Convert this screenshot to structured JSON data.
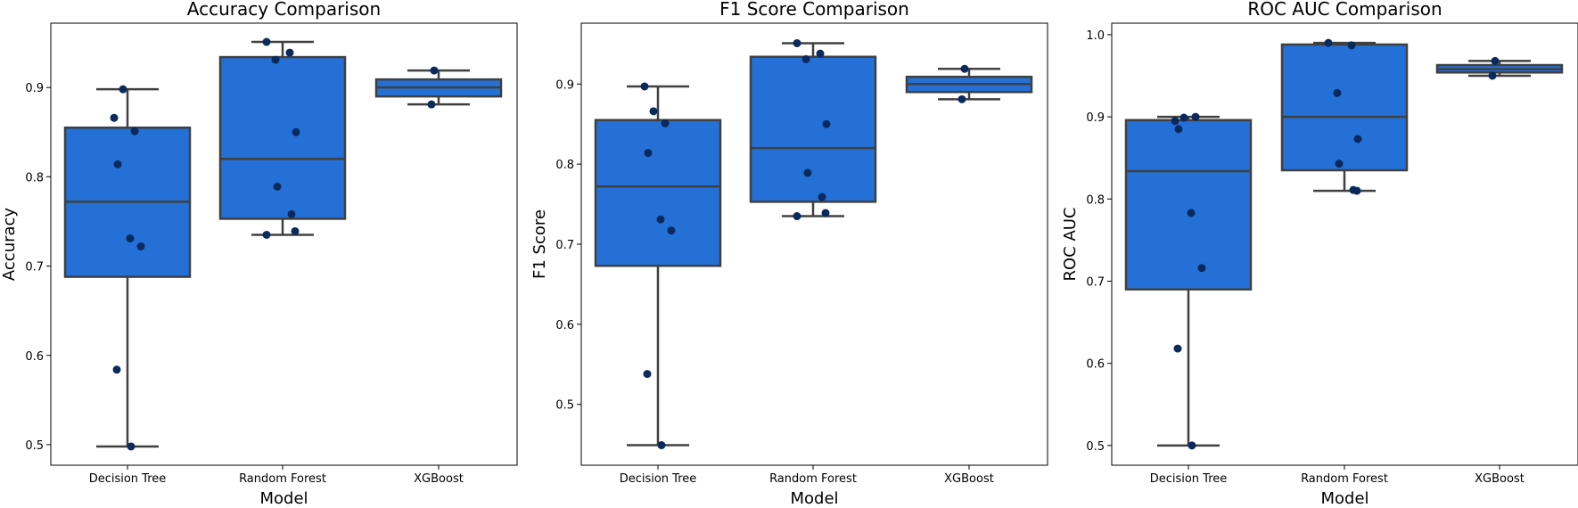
{
  "colors": {
    "box": "#2470d6",
    "line": "#404040",
    "point": "#0a2a5e"
  },
  "chart_data": [
    {
      "type": "box",
      "title": "Accuracy Comparison",
      "xlabel": "Model",
      "ylabel": "Accuracy",
      "ylim": [
        0.477,
        0.972
      ],
      "yticks": [
        0.5,
        0.6,
        0.7,
        0.8,
        0.9
      ],
      "categories": [
        "Decision Tree",
        "Random Forest",
        "XGBoost"
      ],
      "boxes": [
        {
          "whislo": 0.498,
          "q1": 0.688,
          "med": 0.772,
          "q3": 0.855,
          "whishi": 0.898
        },
        {
          "whislo": 0.735,
          "q1": 0.753,
          "med": 0.82,
          "q3": 0.934,
          "whishi": 0.951
        },
        {
          "whislo": 0.881,
          "q1": 0.89,
          "med": 0.9,
          "q3": 0.909,
          "whishi": 0.919
        }
      ],
      "points": [
        [
          0.866,
          0.898,
          0.851,
          0.814,
          0.731,
          0.722,
          0.584,
          0.498
        ],
        [
          0.951,
          0.939,
          0.931,
          0.85,
          0.789,
          0.758,
          0.739,
          0.735
        ],
        [
          0.919,
          0.881
        ]
      ]
    },
    {
      "type": "box",
      "title": "F1 Score Comparison",
      "xlabel": "Model",
      "ylabel": "F1 Score",
      "ylim": [
        0.424,
        0.976
      ],
      "yticks": [
        0.5,
        0.6,
        0.7,
        0.8,
        0.9
      ],
      "categories": [
        "Decision Tree",
        "Random Forest",
        "XGBoost"
      ],
      "boxes": [
        {
          "whislo": 0.449,
          "q1": 0.673,
          "med": 0.772,
          "q3": 0.855,
          "whishi": 0.897
        },
        {
          "whislo": 0.735,
          "q1": 0.753,
          "med": 0.82,
          "q3": 0.934,
          "whishi": 0.951
        },
        {
          "whislo": 0.881,
          "q1": 0.89,
          "med": 0.9,
          "q3": 0.909,
          "whishi": 0.919
        }
      ],
      "points": [
        [
          0.897,
          0.866,
          0.851,
          0.814,
          0.731,
          0.717,
          0.538,
          0.449
        ],
        [
          0.951,
          0.938,
          0.931,
          0.85,
          0.789,
          0.759,
          0.739,
          0.735
        ],
        [
          0.919,
          0.881
        ]
      ]
    },
    {
      "type": "box",
      "title": "ROC AUC Comparison",
      "xlabel": "Model",
      "ylabel": "ROC AUC",
      "ylim": [
        0.476,
        1.014
      ],
      "yticks": [
        0.5,
        0.6,
        0.7,
        0.8,
        0.9,
        1.0
      ],
      "categories": [
        "Decision Tree",
        "Random Forest",
        "XGBoost"
      ],
      "boxes": [
        {
          "whislo": 0.5,
          "q1": 0.69,
          "med": 0.834,
          "q3": 0.896,
          "whishi": 0.9
        },
        {
          "whislo": 0.81,
          "q1": 0.835,
          "med": 0.9,
          "q3": 0.988,
          "whishi": 0.99
        },
        {
          "whislo": 0.95,
          "q1": 0.954,
          "med": 0.958,
          "q3": 0.963,
          "whishi": 0.968
        }
      ],
      "points": [
        [
          0.895,
          0.899,
          0.9,
          0.885,
          0.783,
          0.716,
          0.618,
          0.5
        ],
        [
          0.99,
          0.987,
          0.929,
          0.873,
          0.843,
          0.811,
          0.81
        ],
        [
          0.968,
          0.95
        ]
      ]
    }
  ]
}
